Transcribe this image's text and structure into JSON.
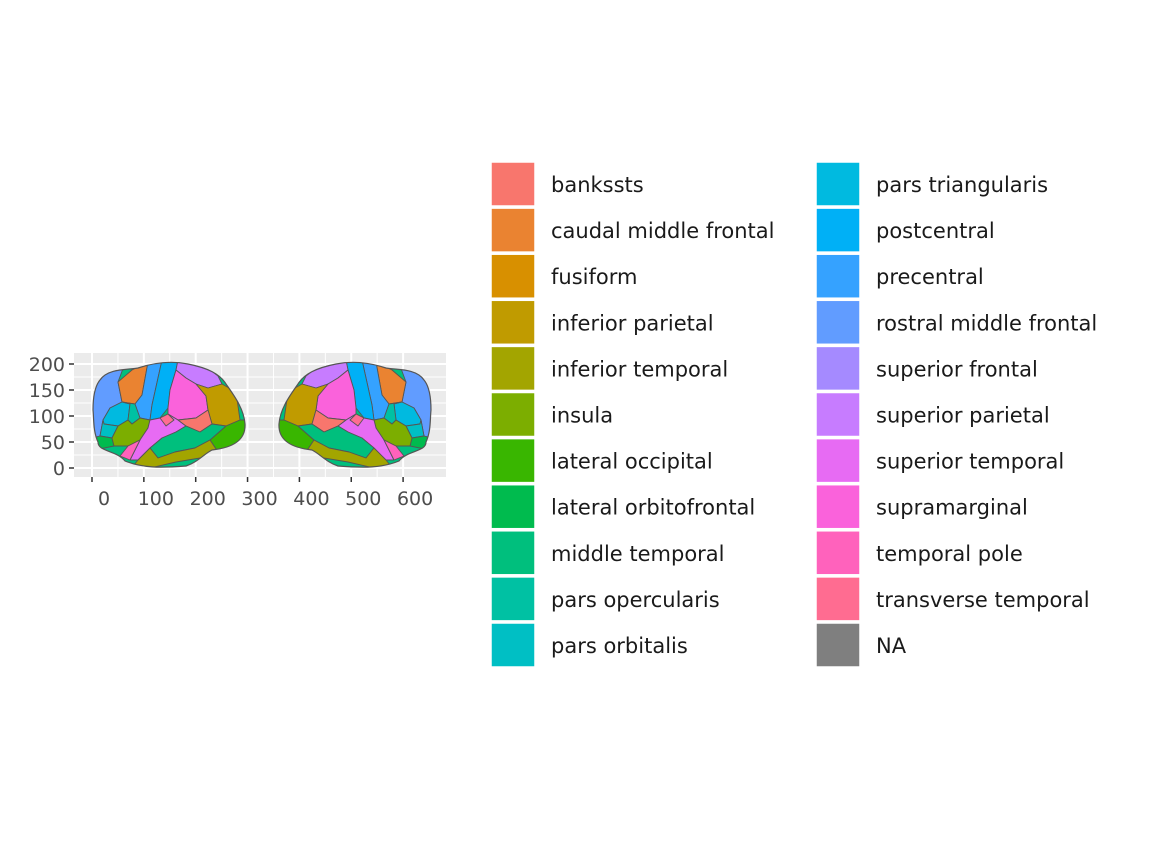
{
  "chart_data": {
    "type": "choropleth",
    "title": "",
    "xlabel": "",
    "ylabel": "",
    "xlim": [
      -50,
      680
    ],
    "ylim": [
      -15,
      220
    ],
    "x_ticks": [
      0,
      100,
      200,
      300,
      400,
      500,
      600
    ],
    "x_tick_labels": [
      "0",
      "100",
      "200",
      "300",
      "400",
      "500",
      "600"
    ],
    "y_ticks": [
      0,
      50,
      100,
      150,
      200
    ],
    "y_tick_labels": [
      "0",
      "50",
      "100",
      "150",
      "200"
    ],
    "panel_background": "#ebebeb",
    "grid": true,
    "legend_position": "right",
    "legend_columns": 2,
    "views": [
      "left hemisphere lateral",
      "right hemisphere lateral"
    ],
    "legend": [
      {
        "label": "bankssts",
        "color": "#F8766D"
      },
      {
        "label": "caudal middle frontal",
        "color": "#EA8331"
      },
      {
        "label": "fusiform",
        "color": "#D89000"
      },
      {
        "label": "inferior parietal",
        "color": "#C09B00"
      },
      {
        "label": "inferior temporal",
        "color": "#A3A500"
      },
      {
        "label": "insula",
        "color": "#7CAE00"
      },
      {
        "label": "lateral occipital",
        "color": "#39B600"
      },
      {
        "label": "lateral orbitofrontal",
        "color": "#00BB4E"
      },
      {
        "label": "middle temporal",
        "color": "#00BF7D"
      },
      {
        "label": "pars opercularis",
        "color": "#00C1A3"
      },
      {
        "label": "pars orbitalis",
        "color": "#00BFC4"
      },
      {
        "label": "pars triangularis",
        "color": "#00BAE0"
      },
      {
        "label": "postcentral",
        "color": "#00B0F6"
      },
      {
        "label": "precentral",
        "color": "#35A2FF"
      },
      {
        "label": "rostral middle frontal",
        "color": "#619CFF"
      },
      {
        "label": "superior frontal",
        "color": "#A58AFF"
      },
      {
        "label": "superior parietal",
        "color": "#C77CFF"
      },
      {
        "label": "superior temporal",
        "color": "#E76BF3"
      },
      {
        "label": "supramarginal",
        "color": "#FA62DB"
      },
      {
        "label": "temporal pole",
        "color": "#FF62BC"
      },
      {
        "label": "transverse temporal",
        "color": "#FF6C91"
      },
      {
        "label": "NA",
        "color": "#7F7F7F"
      }
    ]
  }
}
